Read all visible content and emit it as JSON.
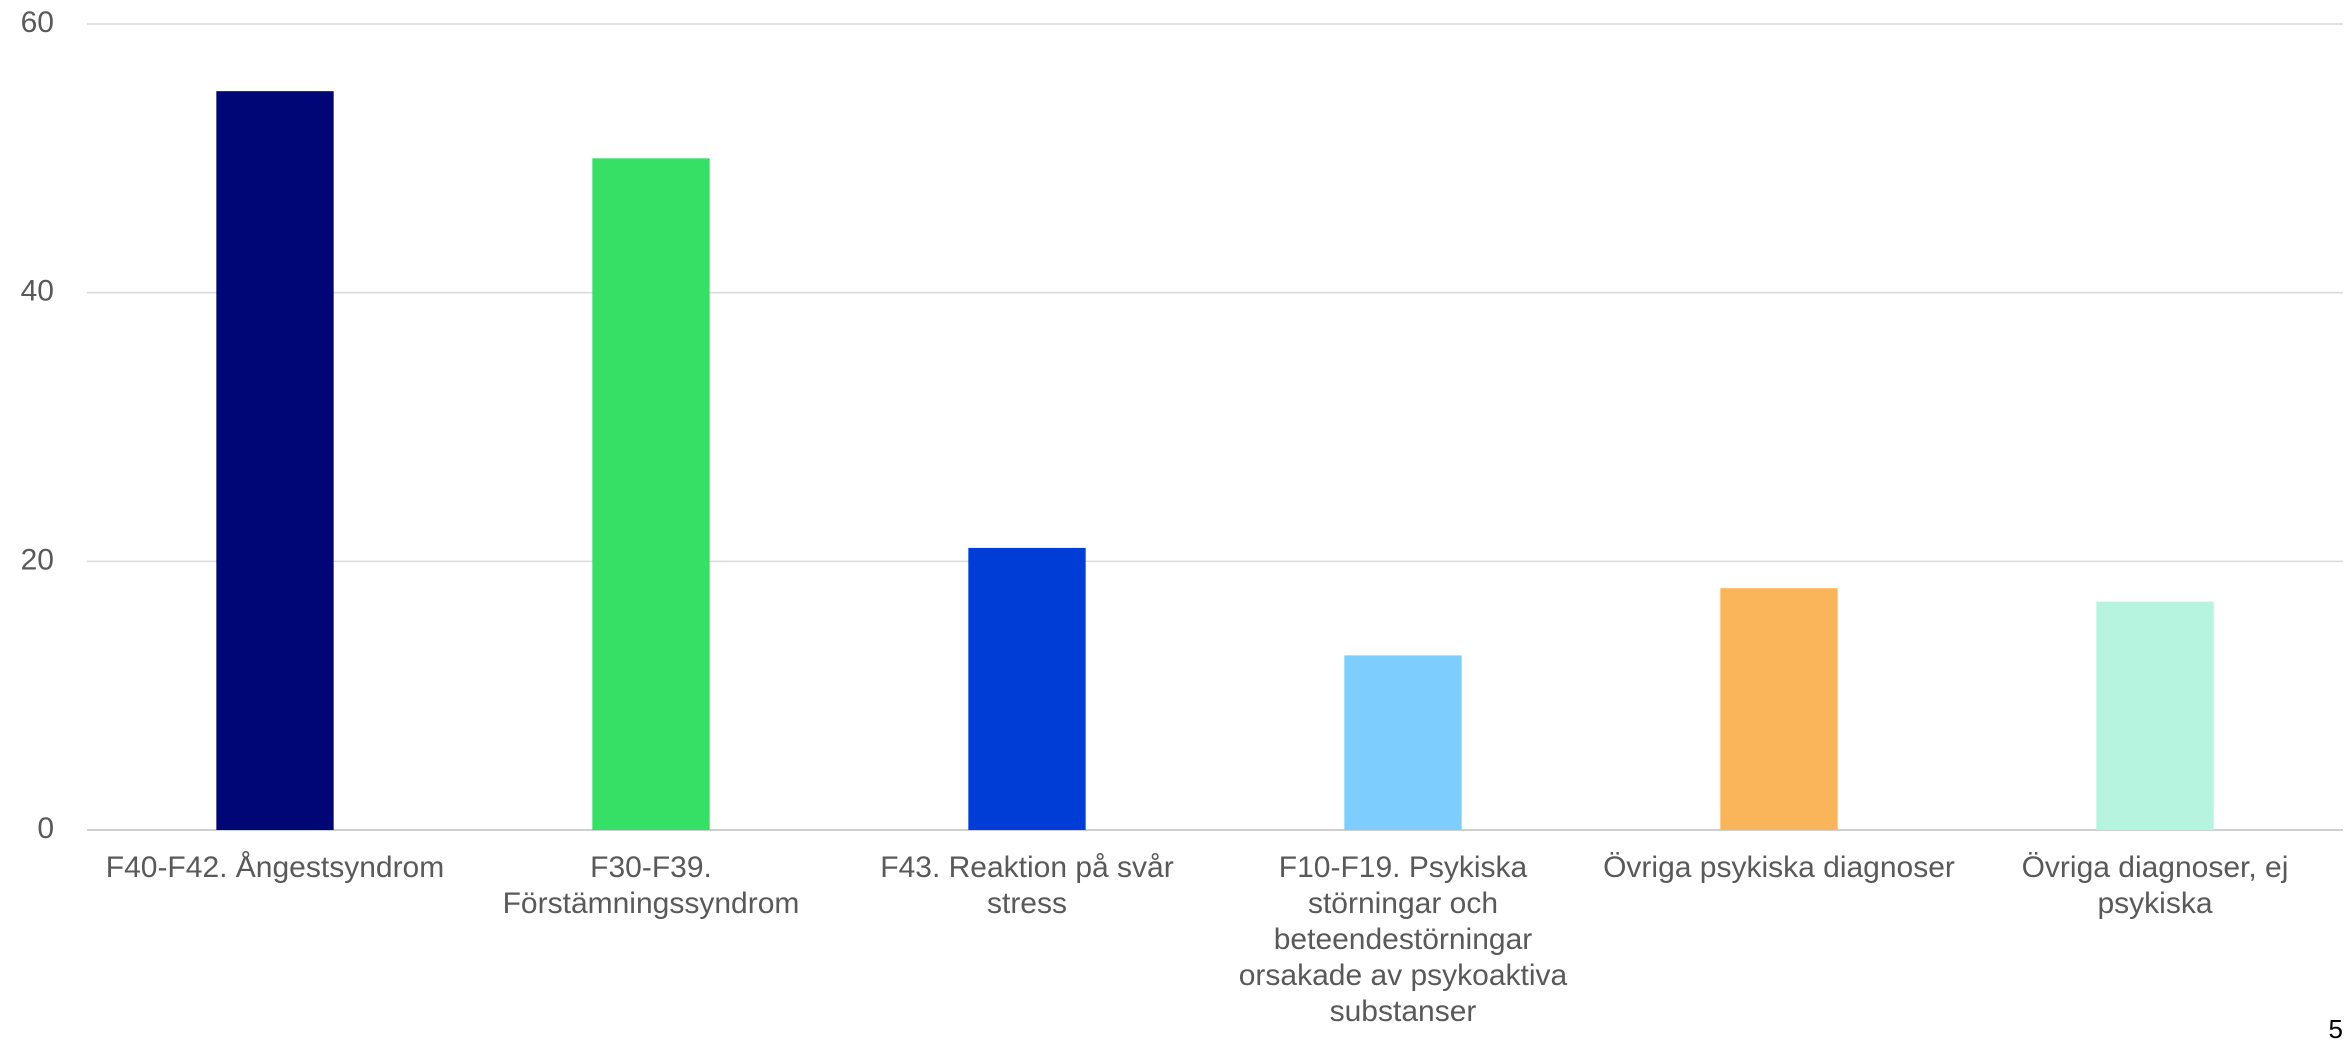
{
  "chart_data": {
    "type": "bar",
    "categories": [
      "F40-F42. Ångestsyndrom",
      "F30-F39. Förstämningssyndrom",
      "F43. Reaktion på svår stress",
      "F10-F19. Psykiska störningar och beteendestörningar orsakade av psykoaktiva substanser",
      "Övriga psykiska diagnoser",
      "Övriga diagnoser, ej psykiska"
    ],
    "values": [
      55,
      50,
      21,
      13,
      18,
      17
    ],
    "colors": [
      "#000675",
      "#36e065",
      "#003dd6",
      "#7dcdfe",
      "#fab459",
      "#b6f4e0"
    ],
    "ylim": [
      0,
      60
    ],
    "yticks": [
      0,
      20,
      40,
      60
    ],
    "grid": true
  },
  "page_number": "5"
}
